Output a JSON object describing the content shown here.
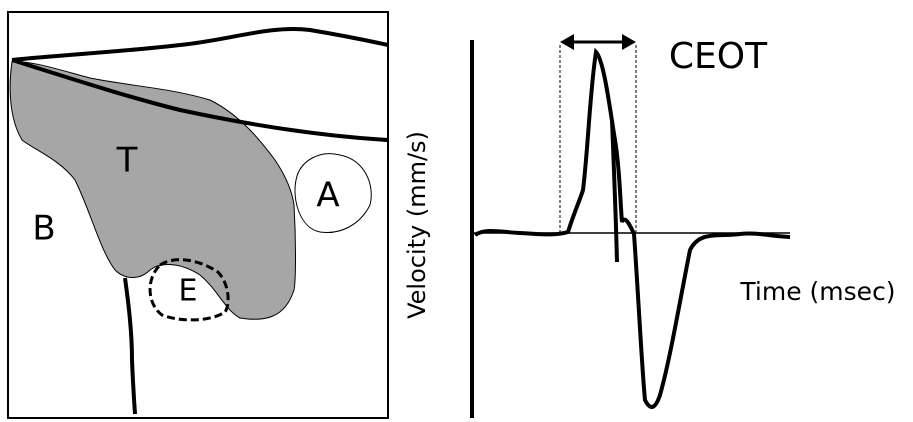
{
  "left_panel": {
    "labels": [
      "T",
      "A",
      "B",
      "E"
    ]
  },
  "right_panel": {
    "annotation": "CEOT",
    "y_axis_label": "Velocity (mm/s)",
    "x_axis_label": "Time (msec)"
  }
}
